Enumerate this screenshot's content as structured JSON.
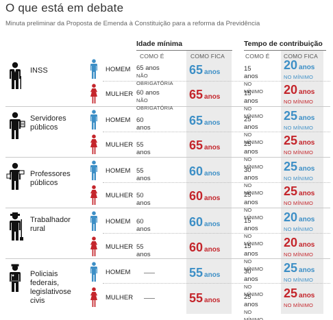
{
  "title": "O que está em debate",
  "subtitle": "Minuta preliminar da Proposta de Emenda à Constituição para a reforma da Previdência",
  "headers": {
    "idade": "Idade mínima",
    "tempo": "Tempo de contribuição",
    "como_e": "COMO É",
    "como_fica": "COMO FICA"
  },
  "labels": {
    "homem": "HOMEM",
    "mulher": "MULHER",
    "anos": "anos",
    "nao_obrigatoria": "NÃO OBRIGATÓRIA",
    "no_minimo": "NO MÍNIMO"
  },
  "colors": {
    "homem": "#3d8fc6",
    "mulher": "#c4252b",
    "shade": "#ebebeb"
  },
  "icons": {
    "homem": "man-icon",
    "mulher": "woman-icon"
  },
  "categories": [
    {
      "name": "INSS",
      "icon": "executive-icon"
    },
    {
      "name": "Servidores públicos",
      "icon": "civil-servant-icon"
    },
    {
      "name": "Professores públicos",
      "icon": "teacher-icon"
    },
    {
      "name": "Trabalhador rural",
      "icon": "farmer-icon"
    },
    {
      "name": "Policiais federais, legislativos e civis",
      "icon": "police-icon"
    }
  ],
  "chart_data": {
    "type": "table",
    "title": "O que está em debate",
    "subtitle": "Minuta preliminar da Proposta de Emenda à Constituição para a reforma da Previdência",
    "columns": [
      "Idade mínima — COMO É",
      "Idade mínima — COMO FICA",
      "Tempo de contribuição — COMO É",
      "Tempo de contribuição — COMO FICA"
    ],
    "rows": [
      {
        "category": "INSS",
        "gender": "HOMEM",
        "age_now": "65 anos",
        "age_now_note": "NÃO OBRIGATÓRIA",
        "age_new": 65,
        "contrib_now": "15 anos",
        "contrib_now_note": "NO MÍNIMO",
        "contrib_new": 20,
        "contrib_new_note": "NO MÍNIMO"
      },
      {
        "category": "INSS",
        "gender": "MULHER",
        "age_now": "60 anos",
        "age_now_note": "NÃO OBRIGATÓRIA",
        "age_new": 65,
        "contrib_now": "15 anos",
        "contrib_now_note": "NO MÍNIMO",
        "contrib_new": 20,
        "contrib_new_note": "NO MÍNIMO"
      },
      {
        "category": "Servidores públicos",
        "gender": "HOMEM",
        "age_now": "60 anos",
        "age_now_note": "",
        "age_new": 65,
        "contrib_now": "25 anos",
        "contrib_now_note": "NO MÍNIMO",
        "contrib_new": 25,
        "contrib_new_note": "NO MÍNIMO"
      },
      {
        "category": "Servidores públicos",
        "gender": "MULHER",
        "age_now": "55 anos",
        "age_now_note": "",
        "age_new": 65,
        "contrib_now": "25 anos",
        "contrib_now_note": "NO MÍNIMO",
        "contrib_new": 25,
        "contrib_new_note": "NO MÍNIMO"
      },
      {
        "category": "Professores públicos",
        "gender": "HOMEM",
        "age_now": "55 anos",
        "age_now_note": "",
        "age_new": 60,
        "contrib_now": "30 anos",
        "contrib_now_note": "NO MÍNIMO",
        "contrib_new": 25,
        "contrib_new_note": "NO MÍNIMO"
      },
      {
        "category": "Professores públicos",
        "gender": "MULHER",
        "age_now": "50 anos",
        "age_now_note": "",
        "age_new": 60,
        "contrib_now": "25 anos",
        "contrib_now_note": "NO MÍNIMO",
        "contrib_new": 25,
        "contrib_new_note": "NO MÍNIMO"
      },
      {
        "category": "Trabalhador rural",
        "gender": "HOMEM",
        "age_now": "60 anos",
        "age_now_note": "",
        "age_new": 60,
        "contrib_now": "15 anos",
        "contrib_now_note": "NO MÍNIMO",
        "contrib_new": 20,
        "contrib_new_note": "NO MÍNIMO"
      },
      {
        "category": "Trabalhador rural",
        "gender": "MULHER",
        "age_now": "55 anos",
        "age_now_note": "",
        "age_new": 60,
        "contrib_now": "15 anos",
        "contrib_now_note": "NO MÍNIMO",
        "contrib_new": 20,
        "contrib_new_note": "NO MÍNIMO"
      },
      {
        "category": "Policiais federais, legislativos e civis",
        "gender": "HOMEM",
        "age_now": null,
        "age_now_note": "",
        "age_new": 55,
        "contrib_now": "30 anos",
        "contrib_now_note": "NO MÍNIMO",
        "contrib_new": 25,
        "contrib_new_note": "NO MÍNIMO"
      },
      {
        "category": "Policiais federais, legislativos e civis",
        "gender": "MULHER",
        "age_now": null,
        "age_now_note": "",
        "age_new": 55,
        "contrib_now": "25 anos",
        "contrib_now_note": "NO MÍNIMO",
        "contrib_new": 25,
        "contrib_new_note": "NO MÍNIMO"
      }
    ]
  }
}
